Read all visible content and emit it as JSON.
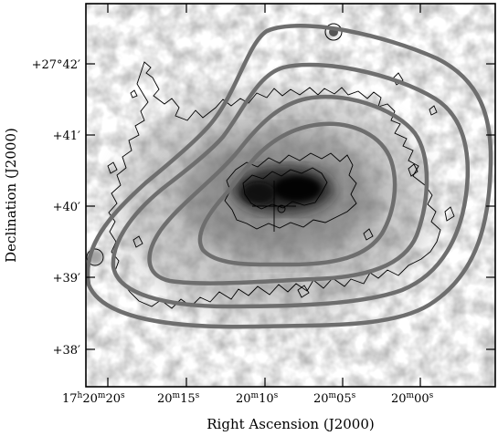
{
  "figure": {
    "x_axis_label": "Right Ascension (J2000)",
    "y_axis_label": "Declination (J2000)",
    "x_ticks": [
      {
        "main": "17",
        "parts": [
          {
            "v": "h",
            "sup": true
          },
          {
            "v": "20",
            "sup": false
          },
          {
            "v": "m",
            "sup": true
          },
          {
            "v": "20",
            "sup": false
          },
          {
            "v": "s",
            "sup": true
          }
        ]
      },
      {
        "main": "20",
        "parts": [
          {
            "v": "m",
            "sup": true
          },
          {
            "v": "15",
            "sup": false
          },
          {
            "v": "s",
            "sup": true
          }
        ]
      },
      {
        "main": "20",
        "parts": [
          {
            "v": "m",
            "sup": true
          },
          {
            "v": "10",
            "sup": false
          },
          {
            "v": "s",
            "sup": true
          }
        ]
      },
      {
        "main": "20",
        "parts": [
          {
            "v": "m",
            "sup": true
          },
          {
            "v": "05",
            "sup": false
          },
          {
            "v": "s",
            "sup": true
          }
        ]
      },
      {
        "main": "20",
        "parts": [
          {
            "v": "m",
            "sup": true
          },
          {
            "v": "00",
            "sup": false
          },
          {
            "v": "s",
            "sup": true
          }
        ]
      }
    ],
    "y_ticks": [
      {
        "label": "+27°42′"
      },
      {
        "label": "+41′"
      },
      {
        "label": "+40′"
      },
      {
        "label": "+39′"
      },
      {
        "label": "+38′"
      }
    ],
    "colors": {
      "background": "#ffffff",
      "frame": "#000000",
      "radio_contour": "#6e6e6e",
      "xray_contour": "#000000",
      "image_core": "#111111"
    }
  }
}
